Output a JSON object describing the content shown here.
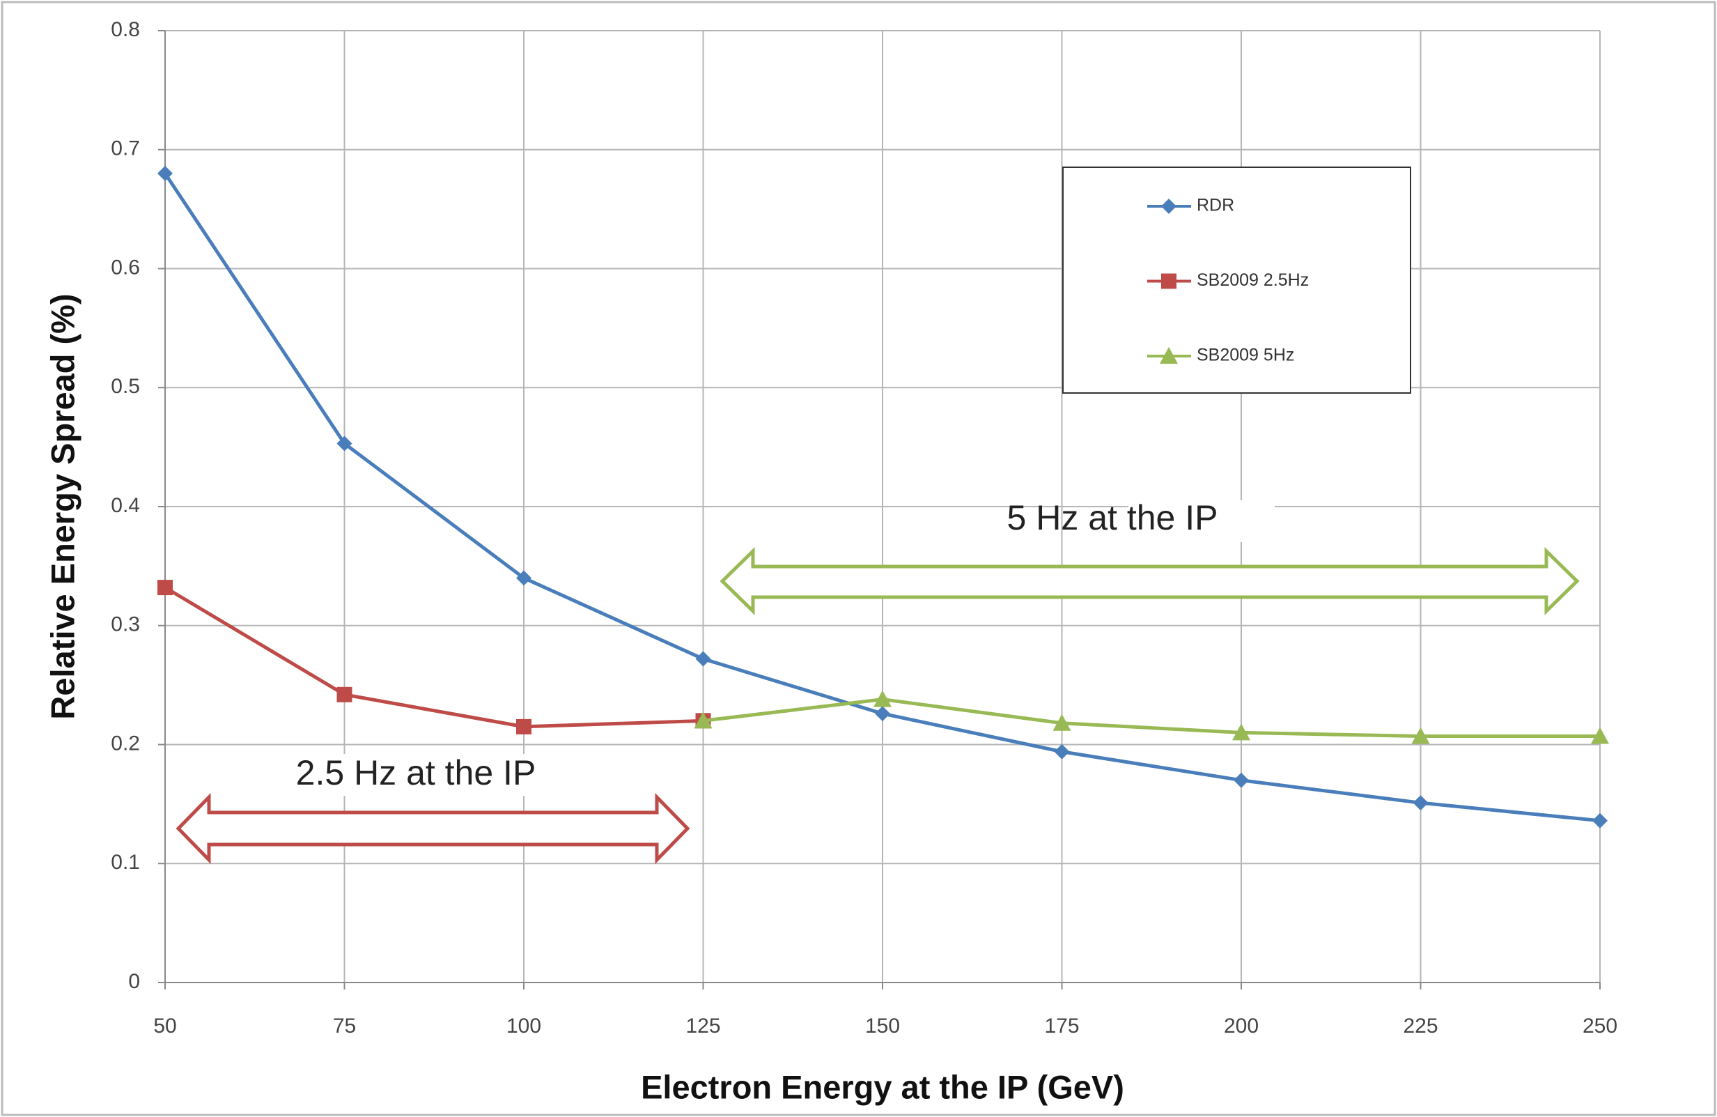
{
  "chart_data": {
    "type": "line",
    "x_label": "Electron Energy at the IP (GeV)",
    "y_label": "Relative Energy Spread (%)",
    "x": [
      50,
      75,
      100,
      125,
      150,
      175,
      200,
      225,
      250
    ],
    "series": [
      {
        "name": "RDR",
        "color": "#4a7ebb",
        "marker": "diamond",
        "values": [
          0.68,
          0.453,
          0.34,
          0.272,
          0.226,
          0.194,
          0.17,
          0.151,
          0.136
        ]
      },
      {
        "name": "SB2009 2.5Hz",
        "color": "#be4b48",
        "marker": "square",
        "values": [
          0.332,
          0.242,
          0.215,
          0.22,
          null,
          null,
          null,
          null,
          null
        ]
      },
      {
        "name": "SB2009 5Hz",
        "color": "#98b954",
        "marker": "triangle",
        "values": [
          null,
          null,
          null,
          0.22,
          0.238,
          0.218,
          0.21,
          0.207,
          0.207
        ]
      }
    ],
    "annotations": [
      "5 Hz at the IP",
      "2.5 Hz at the IP"
    ],
    "xlim": [
      50,
      250
    ],
    "xticks": [
      50,
      75,
      100,
      125,
      150,
      175,
      200,
      225,
      250
    ],
    "ylim": [
      0,
      0.8
    ],
    "yticks": [
      0,
      0.1,
      0.2,
      0.3,
      0.4,
      0.5,
      0.6,
      0.7,
      0.8
    ],
    "grid": true
  }
}
